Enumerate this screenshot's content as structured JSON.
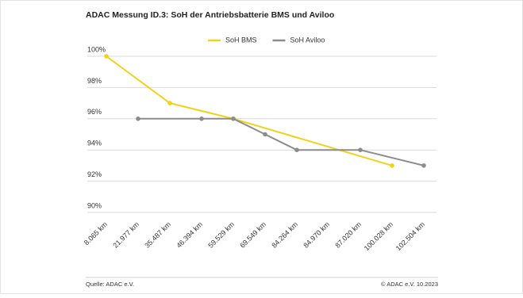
{
  "chart_data": {
    "type": "line",
    "title": "ADAC Messung ID.3: SoH der Antriebsbatterie BMS und Aviloo",
    "categories": [
      "8.065 km",
      "21.977 km",
      "35.487 km",
      "46.394 km",
      "59.529 km",
      "69.549 km",
      "84.264 km",
      "84.970 km",
      "87.020 km",
      "100.028 km",
      "102.504 km"
    ],
    "series": [
      {
        "name": "SoH BMS",
        "color": "#f0d11c",
        "values": [
          100,
          null,
          97,
          null,
          96,
          null,
          null,
          null,
          null,
          93,
          null
        ]
      },
      {
        "name": "SoH Aviloo",
        "color": "#8c8c8c",
        "values": [
          null,
          96,
          null,
          96,
          96,
          95,
          94,
          null,
          94,
          null,
          93
        ]
      }
    ],
    "ylim": [
      90,
      100
    ],
    "yticks": [
      {
        "value": 90,
        "label": "90%"
      },
      {
        "value": 92,
        "label": "92%"
      },
      {
        "value": 94,
        "label": "94%"
      },
      {
        "value": 96,
        "label": "96%"
      },
      {
        "value": 98,
        "label": "98%"
      },
      {
        "value": 100,
        "label": "100%"
      }
    ],
    "grid": true,
    "legend": "top",
    "source": "Quelle: ADAC e.V.",
    "copyright": "© ADAC e.V. 10.2023"
  }
}
